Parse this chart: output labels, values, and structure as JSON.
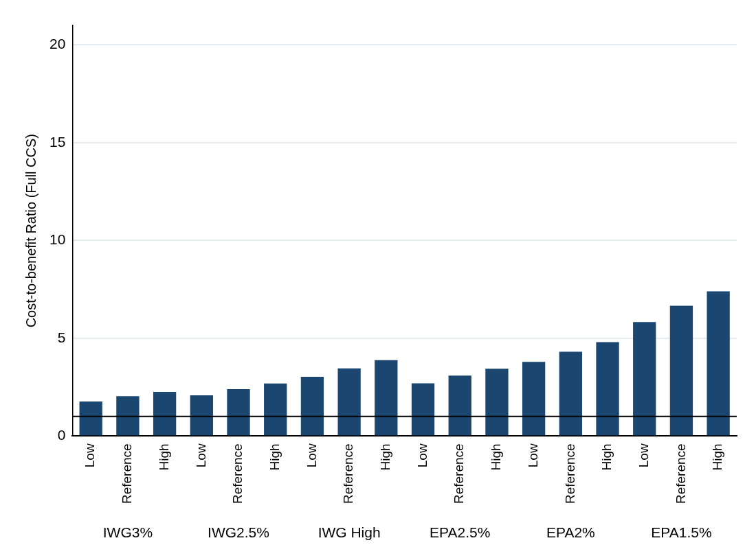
{
  "chart_data": {
    "type": "bar",
    "ylabel": "Cost-to-benefit Ratio (Full CCS)",
    "categories": [
      "Low",
      "Reference",
      "High",
      "Low",
      "Reference",
      "High",
      "Low",
      "Reference",
      "High",
      "Low",
      "Reference",
      "High",
      "Low",
      "Reference",
      "High",
      "Low",
      "Reference",
      "High"
    ],
    "values": [
      1.77,
      2.04,
      2.26,
      2.08,
      2.4,
      2.69,
      3.03,
      3.46,
      3.88,
      2.7,
      3.09,
      3.44,
      3.79,
      4.31,
      4.8,
      5.83,
      6.66,
      7.4
    ],
    "color": "#1b4670",
    "ylim": [
      0,
      21
    ],
    "yticks": [
      0,
      5,
      10,
      15,
      20
    ],
    "grid": "y",
    "legend": false,
    "ref_lines": [
      {
        "axis": "y",
        "value": 1,
        "color": "#000000",
        "line_style": "solid"
      }
    ],
    "annotations": [
      "IWG3%",
      "IWG2.5%",
      "IWG High",
      "EPA2.5%",
      "EPA2%",
      "EPA1.5%"
    ]
  }
}
